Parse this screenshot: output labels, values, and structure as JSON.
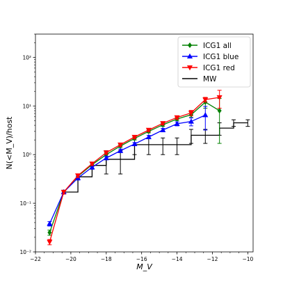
{
  "chart_data": {
    "type": "line",
    "title": "",
    "xlabel": "M_V",
    "ylabel": "N(<M_V)/host",
    "xlim": [
      -22,
      -9.7
    ],
    "ylim": [
      0.01,
      300
    ],
    "yscale": "log",
    "xticks": [
      -22,
      -20,
      -18,
      -16,
      -14,
      -12,
      -10
    ],
    "yticks": [
      0.01,
      0.1,
      1,
      10,
      100
    ],
    "grid": false,
    "legend_position": "top-right",
    "series": [
      {
        "name": "ICG1 all",
        "color": "#008000",
        "marker": "diamond",
        "x": [
          -21.2,
          -20.4,
          -19.6,
          -18.8,
          -18.0,
          -17.2,
          -16.4,
          -15.6,
          -14.8,
          -14.0,
          -13.2,
          -12.4,
          -11.6
        ],
        "y": [
          0.025,
          0.17,
          0.36,
          0.62,
          1.0,
          1.5,
          2.15,
          3.0,
          4.1,
          5.4,
          6.6,
          12.0,
          8.0
        ],
        "err": [
          0.003,
          0.015,
          0.03,
          0.05,
          0.08,
          0.1,
          0.15,
          0.2,
          0.3,
          0.4,
          0.8,
          3.0,
          6.3
        ]
      },
      {
        "name": "ICG1 blue",
        "color": "#0000ff",
        "marker": "triangle-up",
        "x": [
          -21.2,
          -20.4,
          -19.6,
          -18.8,
          -18.0,
          -17.2,
          -16.4,
          -15.6,
          -14.8,
          -14.0,
          -13.2,
          -12.4
        ],
        "y": [
          0.038,
          0.17,
          0.33,
          0.55,
          0.85,
          1.2,
          1.65,
          2.3,
          3.2,
          4.3,
          4.8,
          6.5
        ],
        "err": [
          0.004,
          0.015,
          0.03,
          0.05,
          0.07,
          0.1,
          0.12,
          0.18,
          0.25,
          0.4,
          0.9,
          3.3
        ]
      },
      {
        "name": "ICG1 red",
        "color": "#ff0000",
        "marker": "triangle-down",
        "x": [
          -21.2,
          -20.4,
          -19.6,
          -18.8,
          -18.0,
          -17.2,
          -16.4,
          -15.6,
          -14.8,
          -14.0,
          -13.2,
          -12.4,
          -11.6
        ],
        "y": [
          0.016,
          0.17,
          0.37,
          0.65,
          1.1,
          1.6,
          2.3,
          3.2,
          4.4,
          5.8,
          7.2,
          13.5,
          15.0
        ],
        "err": [
          0.002,
          0.015,
          0.03,
          0.05,
          0.08,
          0.12,
          0.16,
          0.22,
          0.3,
          0.45,
          0.9,
          1.5,
          6.0
        ]
      },
      {
        "name": "MW",
        "color": "#000000",
        "marker": "none",
        "step": true,
        "x": [
          -20.4,
          -19.6,
          -18.8,
          -18.0,
          -17.2,
          -16.4,
          -15.6,
          -14.8,
          -14.0,
          -13.2,
          -12.4,
          -11.6,
          -10.8,
          -10.0
        ],
        "y": [
          0.17,
          0.35,
          0.6,
          0.8,
          0.8,
          1.6,
          1.6,
          1.6,
          1.6,
          2.5,
          2.5,
          3.5,
          4.5,
          4.5
        ],
        "err": [
          0,
          0,
          0,
          0.4,
          0.4,
          0.6,
          0.6,
          0.6,
          0.6,
          0.8,
          0.8,
          1.0,
          0.7,
          0.7
        ]
      }
    ]
  }
}
